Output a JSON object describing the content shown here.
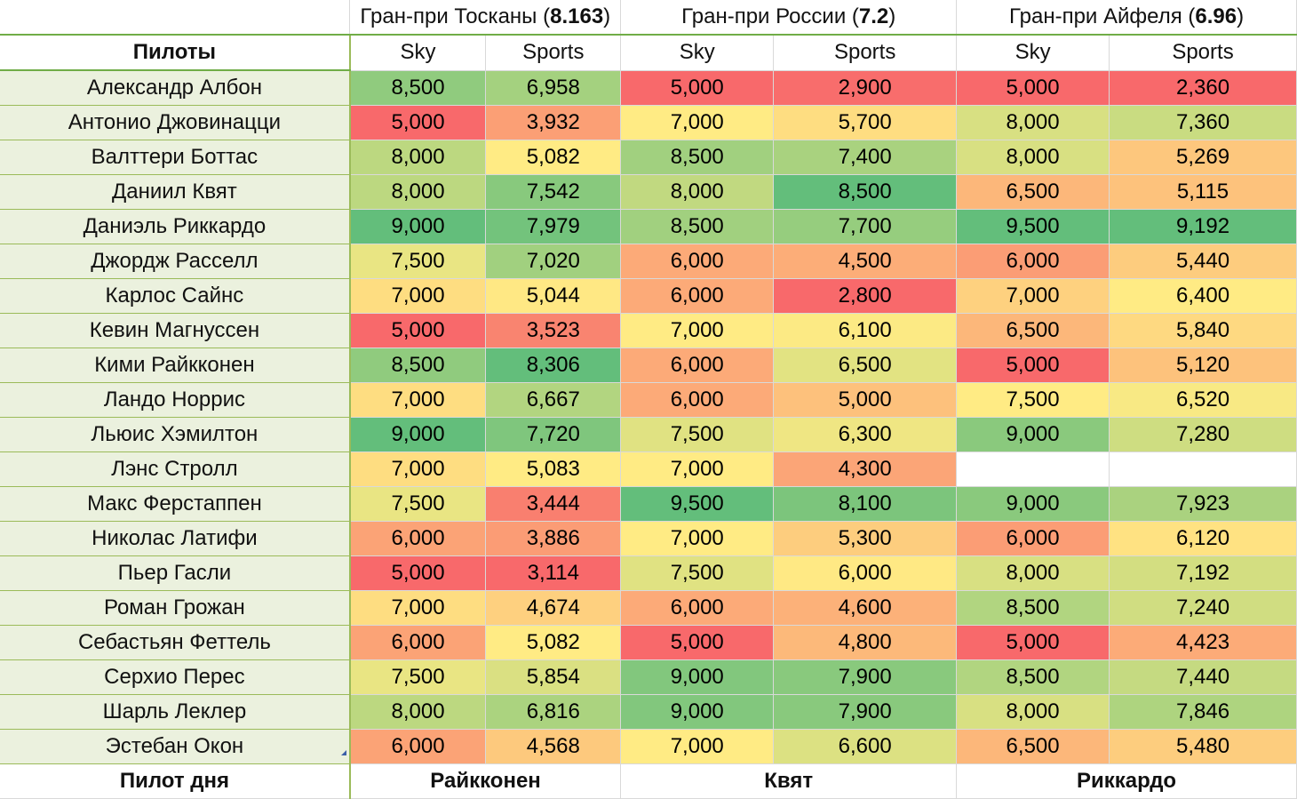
{
  "colors": {
    "pilot_cell_bg": "#ebf1de",
    "accent_border": "#70ad47",
    "scale_low": "#f8696b",
    "scale_mid": "#ffeb84",
    "scale_high": "#63be7b"
  },
  "header": {
    "pilots_label": "Пилоты",
    "gp": [
      {
        "name": "Гран-при Тосканы",
        "score": "8.163"
      },
      {
        "name": "Гран-при России",
        "score": "7.2"
      },
      {
        "name": "Гран-при Айфеля",
        "score": "6.96"
      }
    ],
    "sub": [
      "Sky",
      "Sports",
      "Sky",
      "Sports",
      "Sky",
      "Sports"
    ]
  },
  "rows": [
    {
      "pilot": "Александр Албон",
      "values": [
        "8,500",
        "6,958",
        "5,000",
        "2,900",
        "5,000",
        "2,360"
      ]
    },
    {
      "pilot": "Антонио Джовинацци",
      "values": [
        "5,000",
        "3,932",
        "7,000",
        "5,700",
        "8,000",
        "7,360"
      ]
    },
    {
      "pilot": "Валттери Боттас",
      "values": [
        "8,000",
        "5,082",
        "8,500",
        "7,400",
        "8,000",
        "5,269"
      ]
    },
    {
      "pilot": "Даниил Квят",
      "values": [
        "8,000",
        "7,542",
        "8,000",
        "8,500",
        "6,500",
        "5,115"
      ]
    },
    {
      "pilot": "Даниэль Риккардо",
      "values": [
        "9,000",
        "7,979",
        "8,500",
        "7,700",
        "9,500",
        "9,192"
      ]
    },
    {
      "pilot": "Джордж Расселл",
      "values": [
        "7,500",
        "7,020",
        "6,000",
        "4,500",
        "6,000",
        "5,440"
      ]
    },
    {
      "pilot": "Карлос Сайнс",
      "values": [
        "7,000",
        "5,044",
        "6,000",
        "2,800",
        "7,000",
        "6,400"
      ]
    },
    {
      "pilot": "Кевин Магнуссен",
      "values": [
        "5,000",
        "3,523",
        "7,000",
        "6,100",
        "6,500",
        "5,840"
      ]
    },
    {
      "pilot": "Кими Райкконен",
      "values": [
        "8,500",
        "8,306",
        "6,000",
        "6,500",
        "5,000",
        "5,120"
      ]
    },
    {
      "pilot": "Ландо Норрис",
      "values": [
        "7,000",
        "6,667",
        "6,000",
        "5,000",
        "7,500",
        "6,520"
      ]
    },
    {
      "pilot": "Льюис Хэмилтон",
      "values": [
        "9,000",
        "7,720",
        "7,500",
        "6,300",
        "9,000",
        "7,280"
      ]
    },
    {
      "pilot": "Лэнс Стролл",
      "values": [
        "7,000",
        "5,083",
        "7,000",
        "4,300",
        "",
        ""
      ]
    },
    {
      "pilot": "Макс Ферстаппен",
      "values": [
        "7,500",
        "3,444",
        "9,500",
        "8,100",
        "9,000",
        "7,923"
      ]
    },
    {
      "pilot": "Николас Латифи",
      "values": [
        "6,000",
        "3,886",
        "7,000",
        "5,300",
        "6,000",
        "6,120"
      ]
    },
    {
      "pilot": "Пьер Гасли",
      "values": [
        "5,000",
        "3,114",
        "7,500",
        "6,000",
        "8,000",
        "7,192"
      ]
    },
    {
      "pilot": "Роман Грожан",
      "values": [
        "7,000",
        "4,674",
        "6,000",
        "4,600",
        "8,500",
        "7,240"
      ]
    },
    {
      "pilot": "Себастьян Феттель",
      "values": [
        "6,000",
        "5,082",
        "5,000",
        "4,800",
        "5,000",
        "4,423"
      ]
    },
    {
      "pilot": "Серхио Перес",
      "values": [
        "7,500",
        "5,854",
        "9,000",
        "7,900",
        "8,500",
        "7,440"
      ]
    },
    {
      "pilot": "Шарль Леклер",
      "values": [
        "8,000",
        "6,816",
        "9,000",
        "7,900",
        "8,000",
        "7,846"
      ]
    },
    {
      "pilot": "Эстебан Окон",
      "values": [
        "6,000",
        "4,568",
        "7,000",
        "6,600",
        "6,500",
        "5,480"
      ]
    }
  ],
  "footer": {
    "label": "Пилот дня",
    "winners": [
      "Райкконен",
      "Квят",
      "Риккардо"
    ]
  }
}
